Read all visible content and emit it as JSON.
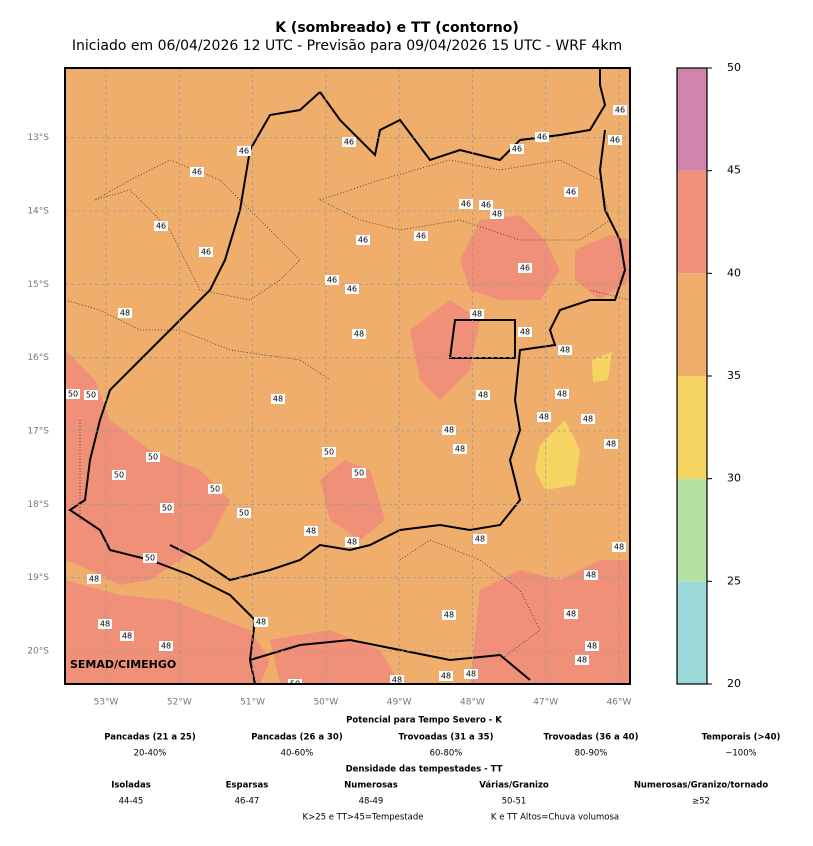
{
  "title": "K (sombreado) e TT (contorno)",
  "subtitle": "Iniciado em 06/04/2026 12 UTC - Previsão para 09/04/2026 15 UTC - WRF 4km",
  "map": {
    "xlim": [
      -53.56,
      -45.85
    ],
    "ylim": [
      -20.45,
      -12.05
    ],
    "grid": true,
    "xticks": [
      {
        "value": -53,
        "label": "53°W"
      },
      {
        "value": -52,
        "label": "52°W"
      },
      {
        "value": -51,
        "label": "51°W"
      },
      {
        "value": -50,
        "label": "50°W"
      },
      {
        "value": -49,
        "label": "49°W"
      },
      {
        "value": -48,
        "label": "48°W"
      },
      {
        "value": -47,
        "label": "47°W"
      },
      {
        "value": -46,
        "label": "46°W"
      }
    ],
    "yticks": [
      {
        "value": -13,
        "label": "13°S"
      },
      {
        "value": -14,
        "label": "14°S"
      },
      {
        "value": -15,
        "label": "15°S"
      },
      {
        "value": -16,
        "label": "16°S"
      },
      {
        "value": -17,
        "label": "17°S"
      },
      {
        "value": -18,
        "label": "18°S"
      },
      {
        "value": -19,
        "label": "19°S"
      },
      {
        "value": -20,
        "label": "20°S"
      }
    ],
    "contour_labels": [
      46,
      46,
      46,
      46,
      46,
      46,
      46,
      46,
      46,
      46,
      46,
      46,
      46,
      46,
      46,
      46,
      46,
      48,
      48,
      48,
      48,
      48,
      48,
      48,
      48,
      48,
      48,
      48,
      48,
      48,
      48,
      48,
      48,
      48,
      48,
      48,
      48,
      48,
      48,
      48,
      48,
      48,
      48,
      48,
      48,
      48,
      48,
      48,
      50,
      50,
      50,
      50,
      50,
      50,
      50,
      50,
      50,
      50,
      50
    ],
    "credit": "SEMAD/CIMEHGO"
  },
  "colorbar": {
    "levels": [
      20,
      25,
      30,
      35,
      40,
      45,
      50
    ],
    "colors": [
      "#9dd9d9",
      "#b4e1a2",
      "#f5d462",
      "#f0ae6c",
      "#f09079",
      "#d086ac"
    ]
  },
  "legend": {
    "k_title": "Potencial para Tempo Severo - K",
    "k_items": [
      {
        "name": "Pancadas (21 a 25)",
        "range": "20-40%"
      },
      {
        "name": "Pancadas (26 a 30)",
        "range": "40-60%"
      },
      {
        "name": "Trovoadas (31 a 35)",
        "range": "60-80%"
      },
      {
        "name": "Trovoadas (36 a 40)",
        "range": "80-90%"
      },
      {
        "name": "Temporais (>40)",
        "range": "~100%"
      }
    ],
    "tt_title": "Densidade das tempestades - TT",
    "tt_items": [
      {
        "name": "Isoladas",
        "range": "44-45"
      },
      {
        "name": "Esparsas",
        "range": "46-47"
      },
      {
        "name": "Numerosas",
        "range": "48-49"
      },
      {
        "name": "Várias/Granizo",
        "range": "50-51"
      },
      {
        "name": "Numerosas/Granizo/tornado",
        "range": "≥52"
      }
    ],
    "notes": [
      "K>25 e TT>45=Tempestade",
      "K e TT Altos=Chuva volumosa"
    ]
  }
}
